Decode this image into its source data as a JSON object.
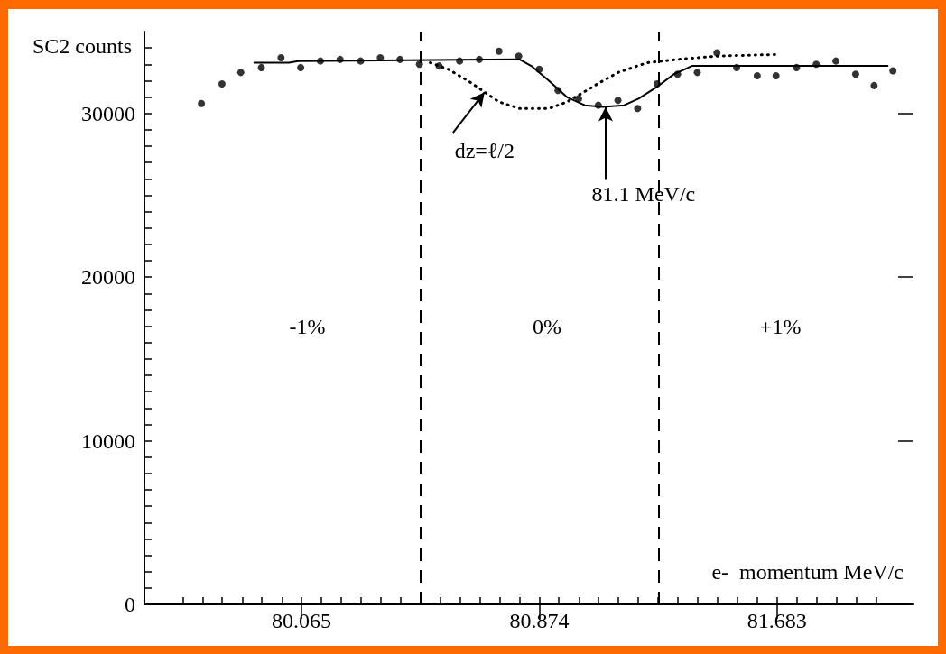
{
  "chart_data": {
    "type": "scatter",
    "ylabel": "SC2 counts",
    "xlabel": "e-  momentum MeV/c",
    "xlim": [
      79.53,
      82.145
    ],
    "ylim": [
      0,
      35000
    ],
    "xticks": [
      {
        "value": 79.66,
        "label": null
      },
      {
        "value": 79.728,
        "label": null
      },
      {
        "value": 79.795,
        "label": null
      },
      {
        "value": 79.863,
        "label": null
      },
      {
        "value": 79.93,
        "label": null
      },
      {
        "value": 79.998,
        "label": null
      },
      80.065,
      {
        "value": 80.132,
        "label": null
      },
      {
        "value": 80.2,
        "label": null
      },
      {
        "value": 80.267,
        "label": null
      },
      {
        "value": 80.335,
        "label": null
      },
      {
        "value": 80.402,
        "label": null
      },
      {
        "value": 80.47,
        "label": null
      },
      {
        "value": 80.537,
        "label": null
      },
      {
        "value": 80.604,
        "label": null
      },
      {
        "value": 80.672,
        "label": null
      },
      {
        "value": 80.739,
        "label": null
      },
      {
        "value": 80.807,
        "label": null
      },
      80.874,
      {
        "value": 80.941,
        "label": null
      },
      {
        "value": 81.009,
        "label": null
      },
      {
        "value": 81.076,
        "label": null
      },
      {
        "value": 81.144,
        "label": null
      },
      {
        "value": 81.211,
        "label": null
      },
      {
        "value": 81.278,
        "label": null
      },
      {
        "value": 81.346,
        "label": null
      },
      {
        "value": 81.413,
        "label": null
      },
      {
        "value": 81.481,
        "label": null
      },
      {
        "value": 81.548,
        "label": null
      },
      {
        "value": 81.615,
        "label": null
      },
      81.683,
      {
        "value": 81.75,
        "label": null
      },
      {
        "value": 81.818,
        "label": null
      },
      {
        "value": 81.885,
        "label": null
      },
      {
        "value": 81.953,
        "label": null
      },
      {
        "value": 82.02,
        "label": null
      }
    ],
    "yticks": [
      0,
      {
        "value": 1000,
        "label": null
      },
      {
        "value": 2000,
        "label": null
      },
      {
        "value": 3000,
        "label": null
      },
      {
        "value": 4000,
        "label": null
      },
      {
        "value": 5000,
        "label": null
      },
      {
        "value": 6000,
        "label": null
      },
      {
        "value": 7000,
        "label": null
      },
      {
        "value": 8000,
        "label": null
      },
      {
        "value": 9000,
        "label": null
      },
      10000,
      {
        "value": 11000,
        "label": null
      },
      {
        "value": 12000,
        "label": null
      },
      {
        "value": 13000,
        "label": null
      },
      {
        "value": 14000,
        "label": null
      },
      {
        "value": 15000,
        "label": null
      },
      {
        "value": 16000,
        "label": null
      },
      {
        "value": 17000,
        "label": null
      },
      {
        "value": 18000,
        "label": null
      },
      {
        "value": 19000,
        "label": null
      },
      20000,
      {
        "value": 21000,
        "label": null
      },
      {
        "value": 22000,
        "label": null
      },
      {
        "value": 23000,
        "label": null
      },
      {
        "value": 24000,
        "label": null
      },
      {
        "value": 25000,
        "label": null
      },
      {
        "value": 26000,
        "label": null
      },
      {
        "value": 27000,
        "label": null
      },
      {
        "value": 28000,
        "label": null
      },
      {
        "value": 29000,
        "label": null
      },
      30000,
      {
        "value": 31000,
        "label": null
      },
      {
        "value": 32000,
        "label": null
      },
      {
        "value": 33000,
        "label": null
      },
      {
        "value": 34000,
        "label": null
      }
    ],
    "grid": false,
    "series": [
      {
        "color": "#000000",
        "marker": "circle",
        "x": [
          79.724,
          79.794,
          79.858,
          79.928,
          79.995,
          80.062,
          80.129,
          80.196,
          80.266,
          80.333,
          80.4,
          80.466,
          80.533,
          80.603,
          80.67,
          80.737,
          80.804,
          80.874,
          80.938,
          81.008,
          81.075,
          81.142,
          81.209,
          81.275,
          81.345,
          81.412,
          81.479,
          81.546,
          81.616,
          81.68,
          81.75,
          81.817,
          81.884,
          81.951,
          82.014,
          82.078
        ],
        "values": [
          30600,
          31800,
          32500,
          32800,
          33400,
          32800,
          33200,
          33300,
          33200,
          33400,
          33300,
          33000,
          32900,
          33200,
          33300,
          33800,
          33500,
          32700,
          31400,
          30900,
          30500,
          30800,
          30300,
          31800,
          32400,
          32500,
          33700,
          32800,
          32300,
          32300,
          32800,
          33000,
          33200,
          32400,
          31700,
          32600
        ]
      },
      {
        "type": "line",
        "color": "#000000",
        "marker": "none",
        "line_style": "solid",
        "x": [
          79.904,
          80.022,
          80.053,
          80.807,
          80.847,
          80.907,
          80.968,
          81.029,
          81.09,
          81.163,
          81.212,
          81.273,
          81.333,
          81.394,
          81.437,
          82.06
        ],
        "values": [
          33100,
          33100,
          33200,
          33300,
          32900,
          32000,
          31000,
          30500,
          30400,
          30500,
          30900,
          31600,
          32400,
          32900,
          32900,
          32900
        ]
      },
      {
        "type": "line",
        "color": "#000000",
        "marker": "none",
        "line_style": "dotted",
        "x": [
          80.503,
          80.564,
          80.631,
          80.664,
          80.737,
          80.807,
          80.907,
          80.968,
          81.035,
          81.072,
          81.142,
          81.242,
          81.345,
          81.476,
          81.68
        ],
        "values": [
          33100,
          32700,
          32000,
          31600,
          30700,
          30300,
          30300,
          30700,
          31400,
          31800,
          32500,
          33100,
          33300,
          33500,
          33600
        ]
      }
    ],
    "ref_lines": [
      {
        "axis": "x",
        "value": 80.466,
        "color": "#000000",
        "line_style": "dashed"
      },
      {
        "axis": "x",
        "value": 81.278,
        "color": "#000000",
        "line_style": "dashed"
      }
    ],
    "annotations": [
      "-1%",
      "0%",
      "+1%",
      {
        "text": "dz=ℓ/2",
        "x": 80.688,
        "y": 31300
      },
      {
        "text": "81.1 MeV/c",
        "x": 81.1,
        "y": 30400
      }
    ]
  }
}
